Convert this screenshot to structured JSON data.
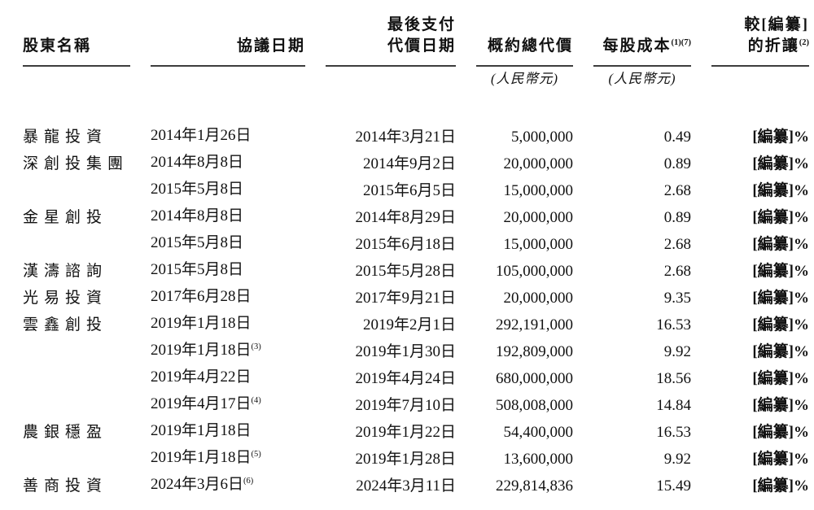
{
  "page": {
    "background_color": "#ffffff",
    "text_color": "#111111",
    "rule_color": "#3d3d3d"
  },
  "table": {
    "headers": {
      "shareholder": "股東名稱",
      "agreement_date": "協議日期",
      "payment_date_line1": "最後支付",
      "payment_date_line2": "代價日期",
      "total_consideration": "概約總代價",
      "total_consideration_sub": "(人民幣元)",
      "cost_per_share": "每股成本",
      "cost_per_share_sup": "(1)(7)",
      "cost_per_share_sub": "(人民幣元)",
      "discount_line1": "較[編纂]",
      "discount_line2": "的折讓",
      "discount_sup": "(2)"
    },
    "rows": [
      {
        "shareholder": "暴龍投資",
        "agreement_date": "2014年1月26日",
        "agreement_sup": "",
        "payment_date": "2014年3月21日",
        "total": "5,000,000",
        "per_share": "0.49",
        "discount": "[編纂]%"
      },
      {
        "shareholder": "深創投集團",
        "agreement_date": "2014年8月8日",
        "agreement_sup": "",
        "payment_date": "2014年9月2日",
        "total": "20,000,000",
        "per_share": "0.89",
        "discount": "[編纂]%"
      },
      {
        "shareholder": "",
        "agreement_date": "2015年5月8日",
        "agreement_sup": "",
        "payment_date": "2015年6月5日",
        "total": "15,000,000",
        "per_share": "2.68",
        "discount": "[編纂]%"
      },
      {
        "shareholder": "金星創投",
        "agreement_date": "2014年8月8日",
        "agreement_sup": "",
        "payment_date": "2014年8月29日",
        "total": "20,000,000",
        "per_share": "0.89",
        "discount": "[編纂]%"
      },
      {
        "shareholder": "",
        "agreement_date": "2015年5月8日",
        "agreement_sup": "",
        "payment_date": "2015年6月18日",
        "total": "15,000,000",
        "per_share": "2.68",
        "discount": "[編纂]%"
      },
      {
        "shareholder": "漢濤諮詢",
        "agreement_date": "2015年5月8日",
        "agreement_sup": "",
        "payment_date": "2015年5月28日",
        "total": "105,000,000",
        "per_share": "2.68",
        "discount": "[編纂]%"
      },
      {
        "shareholder": "光易投資",
        "agreement_date": "2017年6月28日",
        "agreement_sup": "",
        "payment_date": "2017年9月21日",
        "total": "20,000,000",
        "per_share": "9.35",
        "discount": "[編纂]%"
      },
      {
        "shareholder": "雲鑫創投",
        "agreement_date": "2019年1月18日",
        "agreement_sup": "",
        "payment_date": "2019年2月1日",
        "total": "292,191,000",
        "per_share": "16.53",
        "discount": "[編纂]%"
      },
      {
        "shareholder": "",
        "agreement_date": "2019年1月18日",
        "agreement_sup": "(3)",
        "payment_date": "2019年1月30日",
        "total": "192,809,000",
        "per_share": "9.92",
        "discount": "[編纂]%"
      },
      {
        "shareholder": "",
        "agreement_date": "2019年4月22日",
        "agreement_sup": "",
        "payment_date": "2019年4月24日",
        "total": "680,000,000",
        "per_share": "18.56",
        "discount": "[編纂]%"
      },
      {
        "shareholder": "",
        "agreement_date": "2019年4月17日",
        "agreement_sup": "(4)",
        "payment_date": "2019年7月10日",
        "total": "508,008,000",
        "per_share": "14.84",
        "discount": "[編纂]%"
      },
      {
        "shareholder": "農銀穩盈",
        "agreement_date": "2019年1月18日",
        "agreement_sup": "",
        "payment_date": "2019年1月22日",
        "total": "54,400,000",
        "per_share": "16.53",
        "discount": "[編纂]%"
      },
      {
        "shareholder": "",
        "agreement_date": "2019年1月18日",
        "agreement_sup": "(5)",
        "payment_date": "2019年1月28日",
        "total": "13,600,000",
        "per_share": "9.92",
        "discount": "[編纂]%"
      },
      {
        "shareholder": "善商投資",
        "agreement_date": "2024年3月6日",
        "agreement_sup": "(6)",
        "payment_date": "2024年3月11日",
        "total": "229,814,836",
        "per_share": "15.49",
        "discount": "[編纂]%"
      }
    ]
  }
}
